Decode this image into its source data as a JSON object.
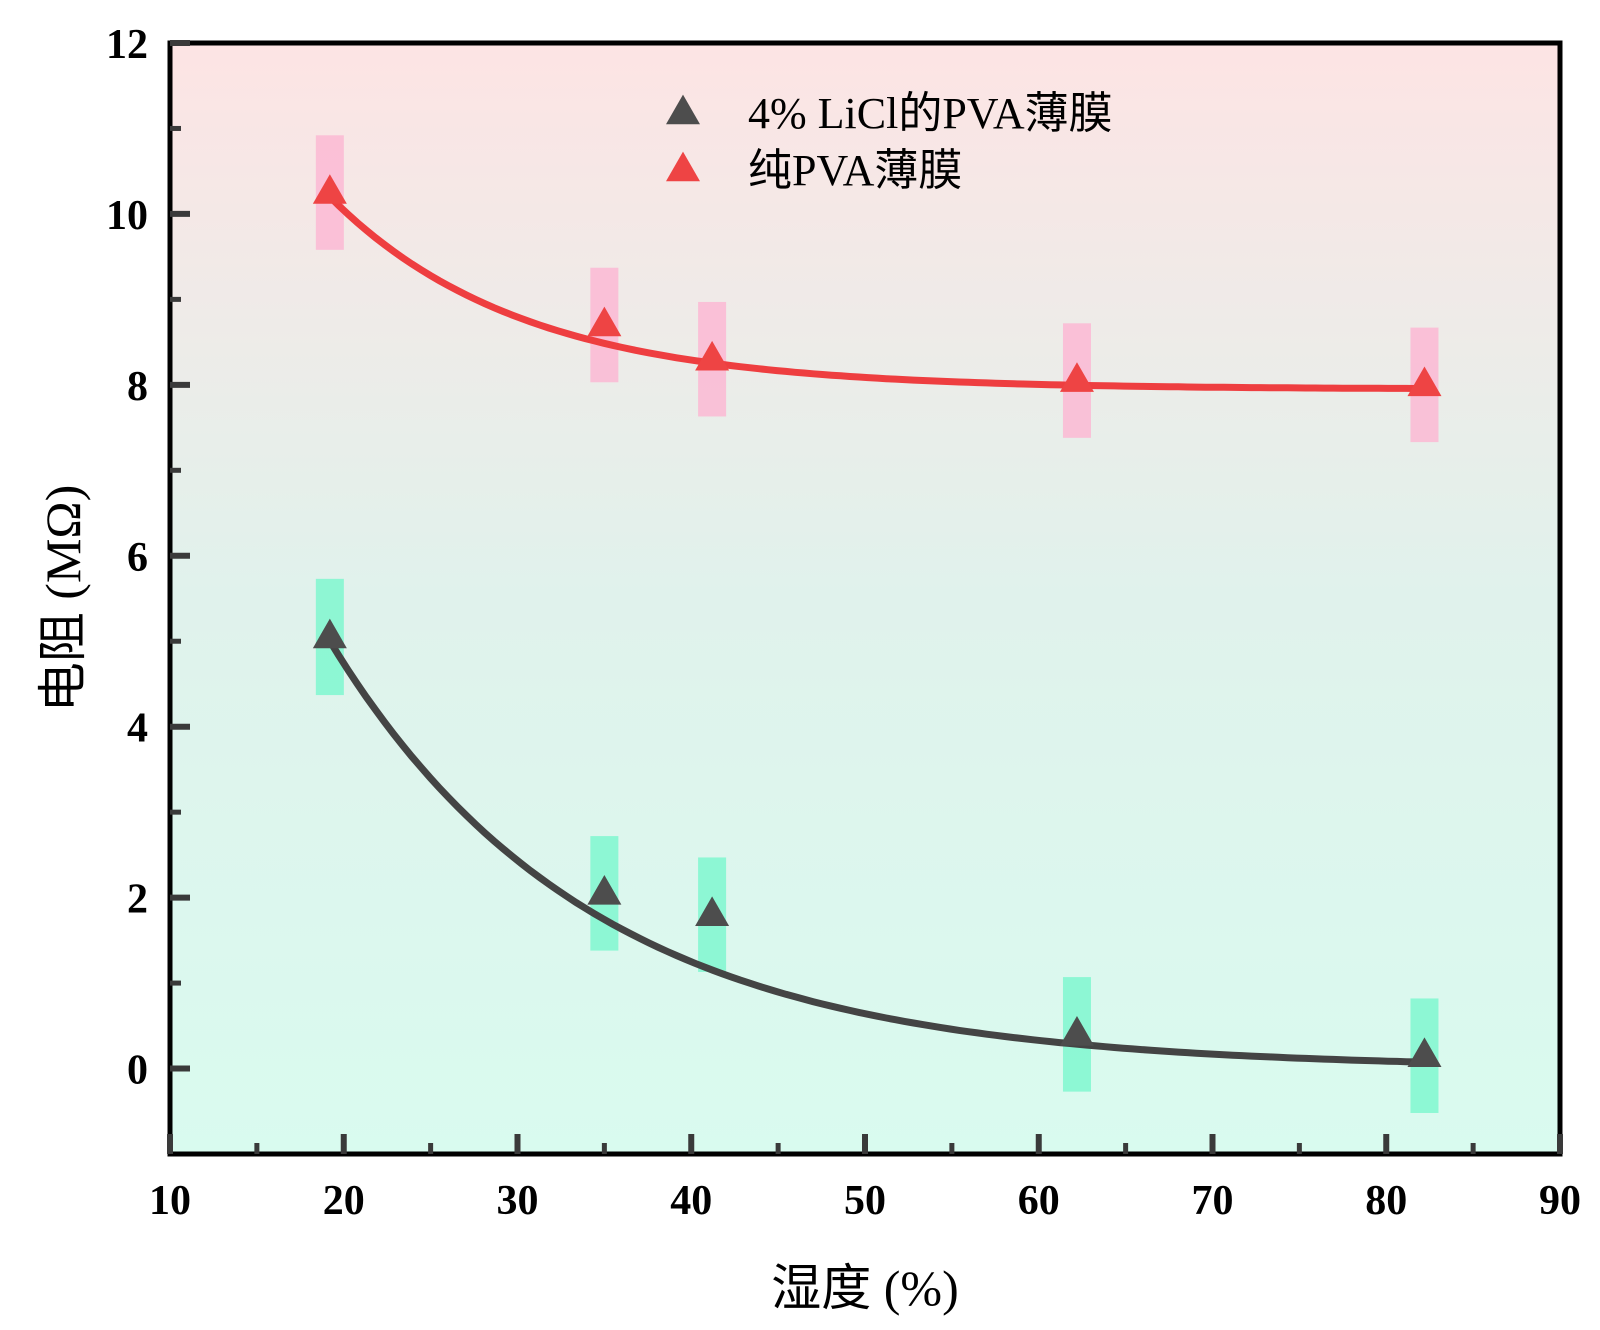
{
  "chart_data": {
    "type": "scatter",
    "title": "",
    "xlabel": "湿度 (%)",
    "ylabel": "电阻 (MΩ)",
    "xlim": [
      10,
      90
    ],
    "ylim": [
      -1,
      12
    ],
    "xticks": [
      10,
      20,
      30,
      40,
      50,
      60,
      70,
      80,
      90
    ],
    "yticks": [
      0,
      2,
      4,
      6,
      8,
      10,
      12
    ],
    "legend_position": "top-center",
    "background_gradient": [
      "#fde4e4",
      "#e0f2ec",
      "#d9fbef"
    ],
    "series": [
      {
        "name": "4% LiCl的PVA薄膜",
        "marker": "triangle",
        "color": "#4d4d4d",
        "fit_color": "#444444",
        "errorbar_color": "#7ff7cf",
        "x": [
          19.2,
          35.0,
          41.2,
          62.2,
          82.2
        ],
        "y": [
          5.05,
          2.05,
          1.8,
          0.4,
          0.15
        ],
        "error": [
          0.68,
          0.67,
          0.67,
          0.67,
          0.67
        ],
        "fit": {
          "model": "exp_decay",
          "y0": 0.0,
          "A": 5.0,
          "x0": 19.2,
          "t": 15.0,
          "x_range": [
            19.2,
            82.2
          ]
        }
      },
      {
        "name": "纯PVA薄膜",
        "marker": "triangle",
        "color": "#ee4444",
        "fit_color": "#ee3e40",
        "errorbar_color": "#fcb8d4",
        "x": [
          19.2,
          35.0,
          41.2,
          62.2,
          82.2
        ],
        "y": [
          10.25,
          8.7,
          8.3,
          8.05,
          8.0
        ],
        "error": [
          0.67,
          0.67,
          0.67,
          0.67,
          0.67
        ],
        "fit": {
          "model": "exp_decay",
          "y0": 7.95,
          "A": 2.25,
          "x0": 19.2,
          "t": 11.0,
          "x_range": [
            19.2,
            82.2
          ]
        }
      }
    ]
  }
}
